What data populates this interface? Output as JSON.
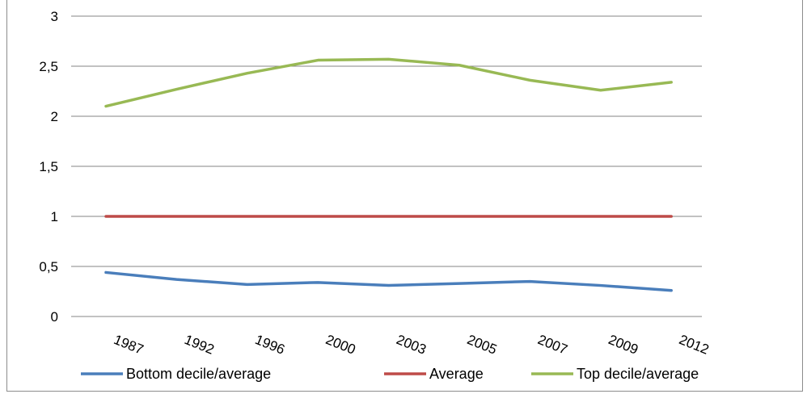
{
  "chart_data": {
    "type": "line",
    "title": "",
    "xlabel": "",
    "ylabel": "",
    "categories": [
      "1987",
      "1992",
      "1996",
      "2000",
      "2003",
      "2005",
      "2007",
      "2009",
      "2012"
    ],
    "ylim": [
      0,
      3
    ],
    "yticks": [
      "0",
      "0,5",
      "1",
      "1,5",
      "2",
      "2,5",
      "3"
    ],
    "grid": true,
    "legend_position": "bottom",
    "series": [
      {
        "name": "Bottom decile/average",
        "color": "#4a7ebb",
        "values": [
          0.44,
          0.37,
          0.32,
          0.34,
          0.31,
          0.33,
          0.35,
          0.31,
          0.26
        ]
      },
      {
        "name": "Average",
        "color": "#be4b48",
        "values": [
          1,
          1,
          1,
          1,
          1,
          1,
          1,
          1,
          1
        ]
      },
      {
        "name": "Top decile/average",
        "color": "#98b954",
        "values": [
          2.1,
          2.27,
          2.43,
          2.56,
          2.57,
          2.51,
          2.36,
          2.26,
          2.34
        ]
      }
    ]
  }
}
